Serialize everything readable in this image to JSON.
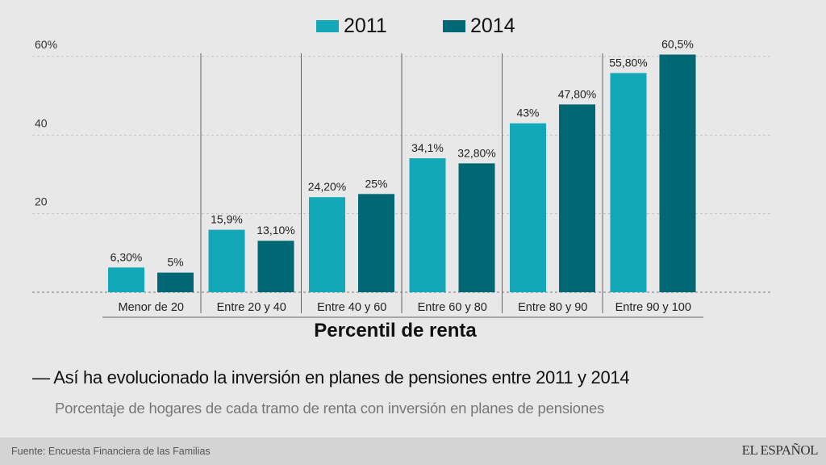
{
  "chart_data": {
    "type": "bar",
    "title": "Así ha evolucionado la inversión en planes de pensiones entre 2011 y 2014",
    "subtitle": "Porcentaje de hogares de cada tramo de renta con inversión en planes de pensiones",
    "xlabel": "Percentil de renta",
    "ylabel": "",
    "ylim": [
      0,
      60
    ],
    "yticks": [
      {
        "value": 20,
        "label": "20"
      },
      {
        "value": 40,
        "label": "40"
      },
      {
        "value": 60,
        "label": "60%"
      }
    ],
    "grid": true,
    "legend_position": "top-center",
    "categories": [
      "Menor de 20",
      "Entre 20 y 40",
      "Entre 40 y 60",
      "Entre 60 y 80",
      "Entre 80 y 90",
      "Entre 90 y 100"
    ],
    "series": [
      {
        "name": "2011",
        "color": "#12a8b8",
        "values": [
          6.3,
          15.9,
          24.2,
          34.1,
          43,
          55.8
        ],
        "labels": [
          "6,30%",
          "15,9%",
          "24,20%",
          "34,1%",
          "43%",
          "55,80%"
        ]
      },
      {
        "name": "2014",
        "color": "#006874",
        "values": [
          5,
          13.1,
          25,
          32.8,
          47.8,
          60.5
        ],
        "labels": [
          "5%",
          "13,10%",
          "25%",
          "32,80%",
          "47,80%",
          "60,5%"
        ]
      }
    ]
  },
  "legend": {
    "items": [
      {
        "label": "2011",
        "color": "#12a8b8"
      },
      {
        "label": "2014",
        "color": "#006874"
      }
    ]
  },
  "headline": "— Así ha evolucionado la inversión en planes de pensiones entre 2011 y 2014",
  "subtitle": "Porcentaje de hogares de cada tramo de renta con inversión en planes de pensiones",
  "axis_title": "Percentil de renta",
  "footer": {
    "source": "Fuente: Encuesta Financiera de las Familias",
    "brand": "EL ESPAÑOL"
  }
}
